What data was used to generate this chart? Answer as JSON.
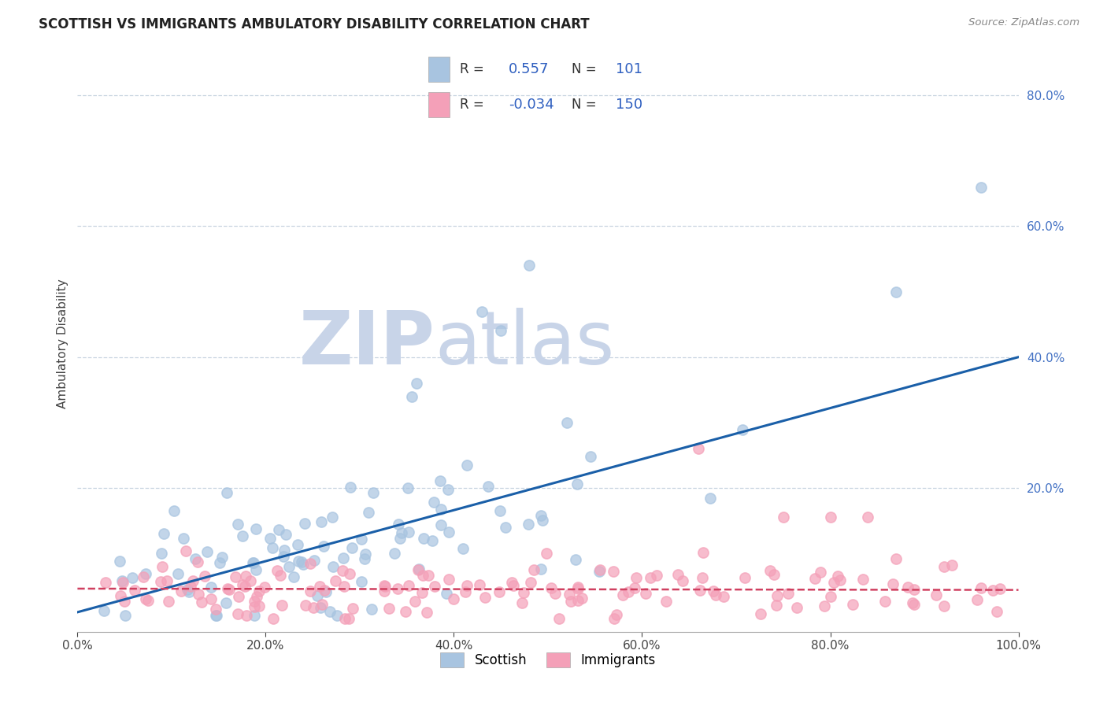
{
  "title": "SCOTTISH VS IMMIGRANTS AMBULATORY DISABILITY CORRELATION CHART",
  "source": "Source: ZipAtlas.com",
  "ylabel": "Ambulatory Disability",
  "xlim": [
    0,
    1.0
  ],
  "ylim": [
    -0.02,
    0.86
  ],
  "xticks": [
    0.0,
    0.2,
    0.4,
    0.6,
    0.8,
    1.0
  ],
  "yticks": [
    0.0,
    0.2,
    0.4,
    0.6,
    0.8
  ],
  "xtick_labels": [
    "0.0%",
    "20.0%",
    "40.0%",
    "60.0%",
    "80.0%",
    "100.0%"
  ],
  "ytick_labels": [
    "",
    "20.0%",
    "40.0%",
    "60.0%",
    "80.0%"
  ],
  "scottish_R": 0.557,
  "scottish_N": 101,
  "immigrants_R": -0.034,
  "immigrants_N": 150,
  "scottish_color": "#a8c4e0",
  "immigrants_color": "#f4a0b8",
  "scottish_line_color": "#1a5fa8",
  "immigrants_line_color": "#d04060",
  "background_color": "#ffffff",
  "grid_color": "#c8d4e0",
  "watermark_zip_color": "#c8d4e8",
  "watermark_atlas_color": "#c8d4e8",
  "title_fontsize": 12,
  "yticklabel_color": "#4472c4",
  "xticklabel_color": "#444444",
  "seed": 42
}
